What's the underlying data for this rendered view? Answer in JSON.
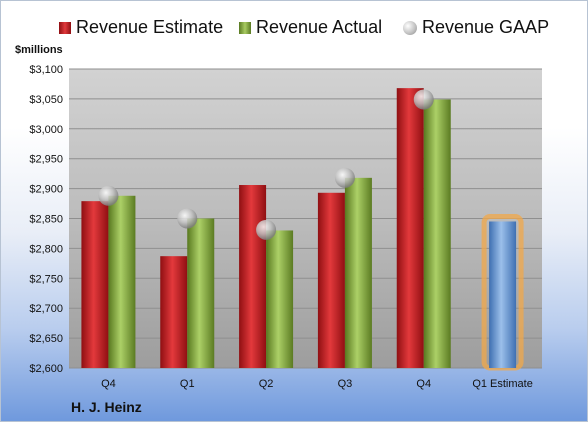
{
  "legend": {
    "estimate": "Revenue Estimate",
    "actual": "Revenue Actual",
    "gaap": "Revenue GAAP"
  },
  "unit_label": "$millions",
  "company": "H. J. Heinz",
  "colors": {
    "estimate": "#c8282b",
    "actual": "#8db04a",
    "gaap": "#b8b8b8",
    "projected": "#6f9bd6",
    "highlight": "#f2a84a"
  },
  "chart_data": {
    "type": "bar",
    "categories": [
      "Q4",
      "Q1",
      "Q2",
      "Q3",
      "Q4",
      "Q1 Estimate"
    ],
    "series": [
      {
        "name": "Revenue Estimate",
        "values": [
          2879,
          2787,
          2906,
          2893,
          3068,
          2845
        ]
      },
      {
        "name": "Revenue Actual",
        "values": [
          2888,
          2850,
          2830,
          2918,
          3049,
          null
        ]
      },
      {
        "name": "Revenue GAAP",
        "values": [
          2888,
          2850,
          2831,
          2918,
          3049,
          null
        ]
      }
    ],
    "ylabel": "$millions",
    "ylim": [
      2600,
      3100
    ],
    "yticks": [
      "$2,600",
      "$2,650",
      "$2,700",
      "$2,750",
      "$2,800",
      "$2,850",
      "$2,900",
      "$2,950",
      "$3,000",
      "$3,050",
      "$3,100"
    ],
    "grid": true,
    "legend_position": "top"
  }
}
